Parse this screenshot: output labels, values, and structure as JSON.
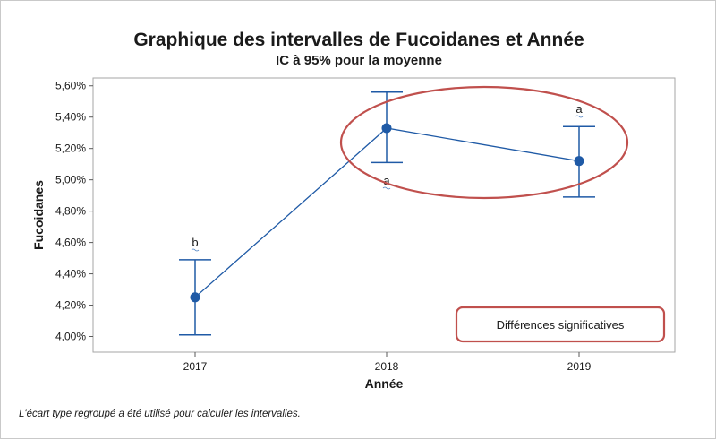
{
  "chart_data": {
    "type": "interval",
    "title": "Graphique des intervalles de Fucoidanes et Année",
    "subtitle": "IC à 95% pour la moyenne",
    "xlabel": "Année",
    "ylabel": "Fucoidanes",
    "categories": [
      "2017",
      "2018",
      "2019"
    ],
    "means": [
      4.25,
      5.33,
      5.12
    ],
    "ci_lower": [
      4.01,
      5.11,
      4.89
    ],
    "ci_upper": [
      4.49,
      5.56,
      5.34
    ],
    "group_letters": [
      "b",
      "a",
      "a"
    ],
    "ylim": [
      3.9,
      5.65
    ],
    "yticks": [
      4.0,
      4.2,
      4.4,
      4.6,
      4.8,
      5.0,
      5.2,
      5.4,
      5.6
    ],
    "ytick_labels": [
      "4,00%",
      "4,20%",
      "4,40%",
      "4,60%",
      "4,80%",
      "5,00%",
      "5,20%",
      "5,40%",
      "5,60%"
    ],
    "footnote": "L'écart type regroupé a été utilisé pour calculer les intervalles.",
    "annotation": "Différences significatives",
    "series_color": "#1f5aa6",
    "annotation_color": "#c0504d",
    "grid": false
  }
}
